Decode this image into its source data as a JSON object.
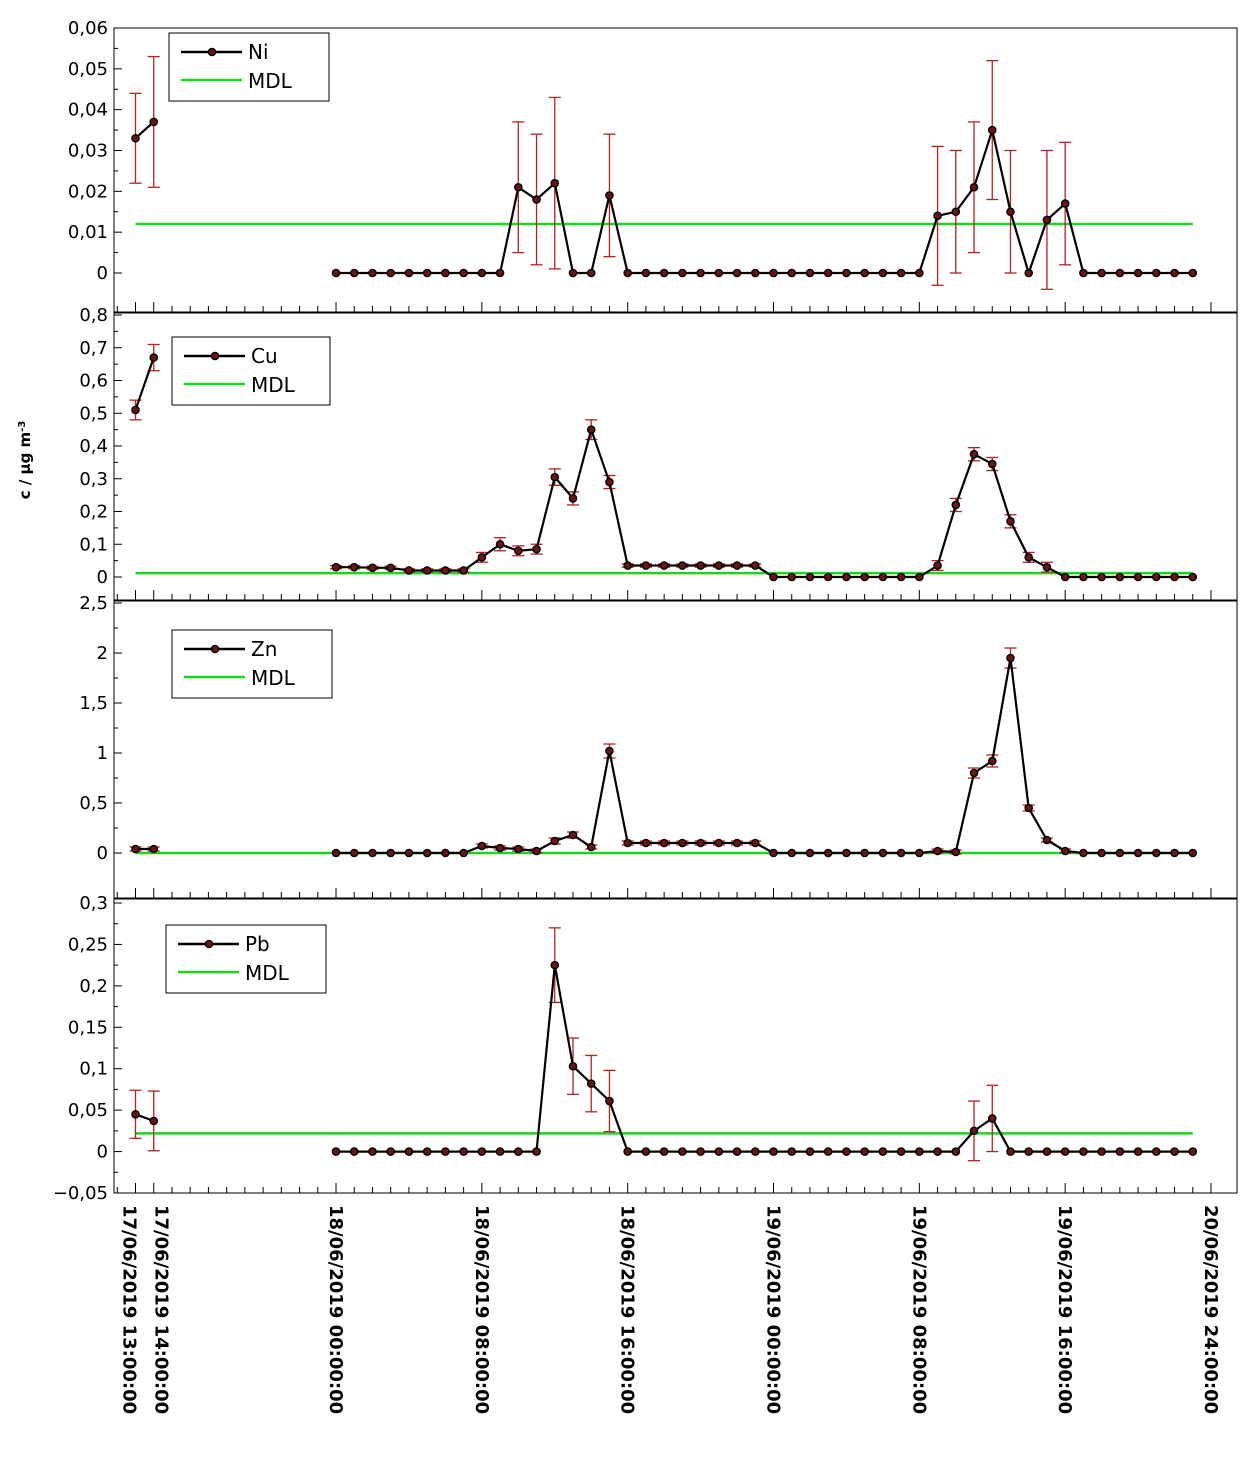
{
  "figure": {
    "ylabel": "c / µg m",
    "ylabel_superscript": "-3",
    "colors": {
      "series": "#000000",
      "marker": "#6b1414",
      "error_bar": "#b22222",
      "mdl": "#1fd41f"
    }
  },
  "x_axis": {
    "tick_labels": [
      "17/06/2019 13:00:00",
      "17/06/2019 14:00:00",
      "18/06/2019 00:00:00",
      "18/06/2019 08:00:00",
      "18/06/2019 16:00:00",
      "19/06/2019 00:00:00",
      "19/06/2019 08:00:00",
      "19/06/2019 16:00:00",
      "20/06/2019 24:00:00"
    ],
    "tick_hours": [
      13,
      14,
      24,
      32,
      40,
      48,
      56,
      64,
      72
    ]
  },
  "chart_data": [
    {
      "type": "line",
      "series": [
        {
          "name": "Ni",
          "x": [
            13,
            14,
            24,
            25,
            26,
            27,
            28,
            29,
            30,
            31,
            32,
            33,
            34,
            35,
            36,
            37,
            38,
            39,
            40,
            41,
            42,
            43,
            44,
            45,
            46,
            47,
            48,
            49,
            50,
            51,
            52,
            53,
            54,
            55,
            56,
            57,
            58,
            59,
            60,
            61,
            62,
            63,
            64,
            65,
            66,
            67,
            68,
            69,
            70,
            71
          ],
          "y": [
            0.033,
            0.037,
            0,
            0,
            0,
            0,
            0,
            0,
            0,
            0,
            0,
            0,
            0.021,
            0.018,
            0.022,
            0,
            0,
            0.019,
            0,
            0,
            0,
            0,
            0,
            0,
            0,
            0,
            0,
            0,
            0,
            0,
            0,
            0,
            0,
            0,
            0,
            0.014,
            0.015,
            0.021,
            0.035,
            0.015,
            0,
            0.013,
            0.017,
            0,
            0,
            0,
            0,
            0,
            0,
            0
          ],
          "error": [
            0.011,
            0.016,
            0,
            0,
            0,
            0,
            0,
            0,
            0,
            0,
            0,
            0,
            0.016,
            0.016,
            0.021,
            0,
            0,
            0.015,
            0,
            0,
            0,
            0,
            0,
            0,
            0,
            0,
            0,
            0,
            0,
            0,
            0,
            0,
            0,
            0,
            0,
            0.017,
            0.015,
            0.016,
            0.017,
            0.015,
            0,
            0.017,
            0.015,
            0,
            0,
            0,
            0,
            0,
            0,
            0
          ]
        },
        {
          "name": "MDL",
          "x": [
            13,
            71
          ],
          "y": [
            0.012,
            0.012
          ]
        }
      ],
      "ylim": [
        0,
        0.06
      ],
      "yticks": [
        0,
        0.01,
        0.02,
        0.03,
        0.04,
        0.05,
        0.06
      ],
      "ytick_labels": [
        "0",
        "0,01",
        "0,02",
        "0,03",
        "0,04",
        "0,05",
        "0,06"
      ],
      "legend": [
        "Ni",
        "MDL"
      ],
      "legend_position": "top-left"
    },
    {
      "type": "line",
      "series": [
        {
          "name": "Cu",
          "x": [
            13,
            14,
            24,
            25,
            26,
            27,
            28,
            29,
            30,
            31,
            32,
            33,
            34,
            35,
            36,
            37,
            38,
            39,
            40,
            41,
            42,
            43,
            44,
            45,
            46,
            47,
            48,
            49,
            50,
            51,
            52,
            53,
            54,
            55,
            56,
            57,
            58,
            59,
            60,
            61,
            62,
            63,
            64,
            65,
            66,
            67,
            68,
            69,
            70,
            71
          ],
          "y": [
            0.51,
            0.67,
            0.03,
            0.03,
            0.028,
            0.028,
            0.02,
            0.02,
            0.02,
            0.02,
            0.06,
            0.1,
            0.08,
            0.085,
            0.305,
            0.24,
            0.45,
            0.29,
            0.035,
            0.035,
            0.035,
            0.035,
            0.035,
            0.035,
            0.035,
            0.035,
            0,
            0,
            0,
            0,
            0,
            0,
            0,
            0,
            0,
            0.035,
            0.22,
            0.375,
            0.345,
            0.17,
            0.06,
            0.03,
            0,
            0,
            0,
            0,
            0,
            0,
            0,
            0
          ],
          "error": [
            0.03,
            0.04,
            0.005,
            0.005,
            0.005,
            0.005,
            0.005,
            0.005,
            0.005,
            0.005,
            0.015,
            0.02,
            0.015,
            0.015,
            0.025,
            0.02,
            0.03,
            0.02,
            0.005,
            0.005,
            0.005,
            0.005,
            0.005,
            0.005,
            0.005,
            0.005,
            0,
            0,
            0,
            0,
            0,
            0,
            0,
            0,
            0,
            0.015,
            0.02,
            0.02,
            0.02,
            0.02,
            0.015,
            0.015,
            0,
            0,
            0,
            0,
            0,
            0,
            0,
            0
          ]
        },
        {
          "name": "MDL",
          "x": [
            13,
            71
          ],
          "y": [
            0.012,
            0.012
          ]
        }
      ],
      "ylim": [
        0,
        0.8
      ],
      "yticks": [
        0,
        0.1,
        0.2,
        0.3,
        0.4,
        0.5,
        0.6,
        0.7,
        0.8
      ],
      "ytick_labels": [
        "0",
        "0,1",
        "0,2",
        "0,3",
        "0,4",
        "0,5",
        "0,6",
        "0,7",
        "0,8"
      ],
      "legend": [
        "Cu",
        "MDL"
      ],
      "legend_position": "top-left"
    },
    {
      "type": "line",
      "series": [
        {
          "name": "Zn",
          "x": [
            13,
            14,
            24,
            25,
            26,
            27,
            28,
            29,
            30,
            31,
            32,
            33,
            34,
            35,
            36,
            37,
            38,
            39,
            40,
            41,
            42,
            43,
            44,
            45,
            46,
            47,
            48,
            49,
            50,
            51,
            52,
            53,
            54,
            55,
            56,
            57,
            58,
            59,
            60,
            61,
            62,
            63,
            64,
            65,
            66,
            67,
            68,
            69,
            70,
            71
          ],
          "y": [
            0.04,
            0.04,
            0,
            0,
            0,
            0,
            0,
            0,
            0,
            0,
            0.07,
            0.05,
            0.04,
            0.02,
            0.12,
            0.18,
            0.06,
            1.02,
            0.1,
            0.1,
            0.1,
            0.1,
            0.1,
            0.1,
            0.1,
            0.1,
            0,
            0,
            0,
            0,
            0,
            0,
            0,
            0,
            0,
            0.02,
            0.01,
            0.8,
            0.92,
            1.95,
            0.45,
            0.13,
            0.02,
            0,
            0,
            0,
            0,
            0,
            0,
            0
          ],
          "error": [
            0.02,
            0.02,
            0,
            0,
            0,
            0,
            0,
            0,
            0,
            0,
            0.02,
            0.02,
            0.02,
            0.02,
            0.03,
            0.03,
            0.02,
            0.07,
            0.02,
            0.02,
            0.02,
            0.02,
            0.02,
            0.02,
            0.02,
            0.02,
            0,
            0,
            0,
            0,
            0,
            0,
            0,
            0,
            0,
            0.02,
            0.02,
            0.05,
            0.06,
            0.1,
            0.03,
            0.02,
            0.02,
            0,
            0,
            0,
            0,
            0,
            0,
            0
          ]
        },
        {
          "name": "MDL",
          "x": [
            13,
            71
          ],
          "y": [
            0,
            0
          ]
        }
      ],
      "ylim": [
        -0.5,
        2.5
      ],
      "yticks": [
        0,
        0.5,
        1,
        1.5,
        2,
        2.5
      ],
      "ytick_labels": [
        "0",
        "0,5",
        "1",
        "1,5",
        "2",
        "2,5"
      ],
      "legend": [
        "Zn",
        "MDL"
      ],
      "legend_position": "top-left"
    },
    {
      "type": "line",
      "series": [
        {
          "name": "Pb",
          "x": [
            13,
            14,
            24,
            25,
            26,
            27,
            28,
            29,
            30,
            31,
            32,
            33,
            34,
            35,
            36,
            37,
            38,
            39,
            40,
            41,
            42,
            43,
            44,
            45,
            46,
            47,
            48,
            49,
            50,
            51,
            52,
            53,
            54,
            55,
            56,
            57,
            58,
            59,
            60,
            61,
            62,
            63,
            64,
            65,
            66,
            67,
            68,
            69,
            70,
            71
          ],
          "y": [
            0.045,
            0.037,
            0,
            0,
            0,
            0,
            0,
            0,
            0,
            0,
            0,
            0,
            0,
            0,
            0.225,
            0.103,
            0.082,
            0.061,
            0,
            0,
            0,
            0,
            0,
            0,
            0,
            0,
            0,
            0,
            0,
            0,
            0,
            0,
            0,
            0,
            0,
            0,
            0,
            0.025,
            0.04,
            0,
            0,
            0,
            0,
            0,
            0,
            0,
            0,
            0,
            0,
            0
          ],
          "error": [
            0.029,
            0.036,
            0,
            0,
            0,
            0,
            0,
            0,
            0,
            0,
            0,
            0,
            0,
            0,
            0.045,
            0.034,
            0.034,
            0.037,
            0,
            0,
            0,
            0,
            0,
            0,
            0,
            0,
            0,
            0,
            0,
            0,
            0,
            0,
            0,
            0,
            0,
            0,
            0,
            0.036,
            0.04,
            0,
            0,
            0,
            0,
            0,
            0,
            0,
            0,
            0,
            0,
            0
          ]
        },
        {
          "name": "MDL",
          "x": [
            13,
            71
          ],
          "y": [
            0.022,
            0.022
          ]
        }
      ],
      "ylim": [
        -0.05,
        0.3
      ],
      "yticks": [
        -0.05,
        0,
        0.05,
        0.1,
        0.15,
        0.2,
        0.25,
        0.3
      ],
      "ytick_labels": [
        "−0,05",
        "0",
        "0,05",
        "0,1",
        "0,15",
        "0,2",
        "0,25",
        "0,3"
      ],
      "legend": [
        "Pb",
        "MDL"
      ],
      "legend_position": "top-left"
    }
  ]
}
